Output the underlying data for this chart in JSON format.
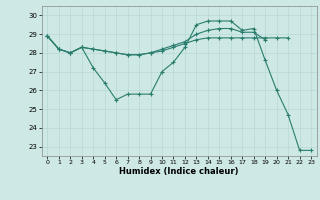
{
  "xlabel": "Humidex (Indice chaleur)",
  "xlim": [
    -0.5,
    23.5
  ],
  "ylim": [
    22.5,
    30.5
  ],
  "yticks": [
    23,
    24,
    25,
    26,
    27,
    28,
    29,
    30
  ],
  "xticks": [
    0,
    1,
    2,
    3,
    4,
    5,
    6,
    7,
    8,
    9,
    10,
    11,
    12,
    13,
    14,
    15,
    16,
    17,
    18,
    19,
    20,
    21,
    22,
    23
  ],
  "color": "#2a7d6d",
  "bg_color": "#cde8e5",
  "grid_color": "#b8d8d4",
  "series": [
    [
      28.9,
      28.2,
      28.0,
      28.3,
      27.2,
      26.4,
      25.5,
      25.8,
      25.8,
      25.8,
      27.0,
      27.5,
      28.3,
      29.5,
      29.7,
      29.7,
      29.7,
      29.2,
      29.3,
      27.6,
      26.0,
      24.7,
      22.8,
      22.8
    ],
    [
      28.9,
      28.2,
      28.0,
      28.3,
      28.2,
      28.1,
      28.0,
      27.9,
      27.9,
      28.0,
      28.1,
      28.3,
      28.5,
      28.7,
      28.8,
      28.8,
      28.8,
      28.8,
      28.8,
      28.8,
      28.8,
      28.8,
      null,
      null
    ],
    [
      28.9,
      28.2,
      28.0,
      28.3,
      28.2,
      28.1,
      28.0,
      27.9,
      27.9,
      28.0,
      28.2,
      28.4,
      28.6,
      29.0,
      29.2,
      29.3,
      29.3,
      29.1,
      29.1,
      28.7,
      null,
      null,
      null,
      null
    ]
  ]
}
